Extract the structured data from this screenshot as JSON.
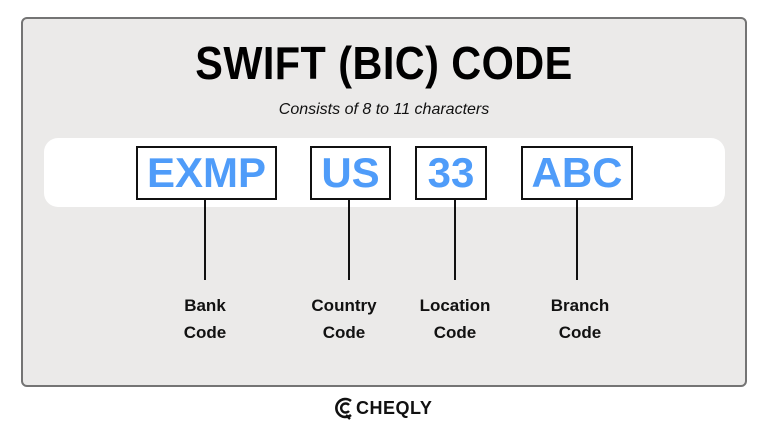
{
  "title": "SWIFT (BIC) CODE",
  "subtitle": "Consists of 8 to 11 characters",
  "accent_color": "#4f9cf9",
  "segments": [
    {
      "code": "EXMP",
      "label_line1": "Bank",
      "label_line2": "Code"
    },
    {
      "code": "US",
      "label_line1": "Country",
      "label_line2": "Code"
    },
    {
      "code": "33",
      "label_line1": "Location",
      "label_line2": "Code"
    },
    {
      "code": "ABC",
      "label_line1": "Branch",
      "label_line2": "Code"
    }
  ],
  "logo": {
    "text": "CHEQLY",
    "icon": "cheqly-c-logo-icon"
  }
}
